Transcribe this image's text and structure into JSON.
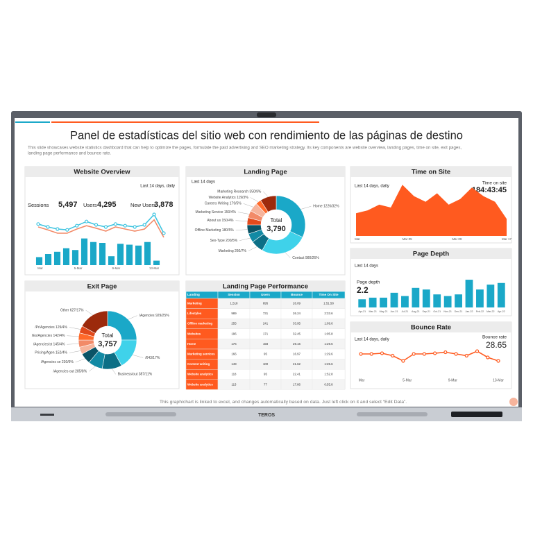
{
  "device_brand": "TEROS",
  "title": "Panel de estadísticas del sitio web con rendimiento de las páginas de destino",
  "description": [
    "This slide showcases website statistics dashboard that can help to optimize the pages, formulate the paid advertising and SEO marketing strategy. Its key components are website overview, landing pages, time on site, exit pages,",
    "landing page performance and bounce rate."
  ],
  "footer": "This graph/chart is linked to excel, and changes automatically based on data. Just left click on it and select “Edit Data”.",
  "website_overview": {
    "title": "Website Overview",
    "period": "Last 14 days, daily",
    "metrics": [
      {
        "label": "Sessions",
        "value": "5,497"
      },
      {
        "label": "Users",
        "value": "4,295"
      },
      {
        "label": "New Users",
        "value": "3,878"
      }
    ],
    "ylim": [
      0,
      100
    ],
    "bars": [
      18,
      25,
      30,
      38,
      34,
      60,
      52,
      50,
      20,
      48,
      46,
      44,
      52,
      10
    ],
    "line_blue": [
      62,
      55,
      50,
      48,
      58,
      68,
      60,
      55,
      62,
      58,
      55,
      60,
      85,
      40
    ],
    "line_orange": [
      55,
      48,
      40,
      40,
      50,
      58,
      52,
      45,
      55,
      50,
      45,
      50,
      72,
      30
    ],
    "x_labels": [
      "Mar",
      "5-Mar",
      "9-Mar",
      "13-Mar"
    ]
  },
  "landing_page": {
    "title": "Landing Page",
    "period": "Last 14 days",
    "total_label": "Total",
    "total": "3,790",
    "segments": [
      {
        "label": "Home 1226/32%",
        "value": 32,
        "color": "#1aa8c8"
      },
      {
        "label": "Contact 980/26%",
        "value": 26,
        "color": "#3fd2ea"
      },
      {
        "label": "Marketing 260/7%",
        "value": 7,
        "color": "#0c6f86"
      },
      {
        "label": "Sex-Type 200/5%",
        "value": 5,
        "color": "#128aa4"
      },
      {
        "label": "Offline Marketing 180/5%",
        "value": 5,
        "color": "#0a5466"
      },
      {
        "label": "About us 150/4%",
        "value": 4,
        "color": "#e24a1c"
      },
      {
        "label": "Marketing Service 150/4%",
        "value": 4,
        "color": "#f28a68"
      },
      {
        "label": "Careers Writing 179/5%",
        "value": 5,
        "color": "#f6b49c"
      },
      {
        "label": "Website Analytics 119/3%",
        "value": 3,
        "color": "#ff6a2a"
      },
      {
        "label": "Marketing Research 350/9%",
        "value": 9,
        "color": "#9c2a0c"
      }
    ]
  },
  "time_on_site": {
    "title": "Time on Site",
    "period": "Last 14 days, daily",
    "metric_label": "Time on site",
    "metric_value": "184:43:45",
    "ylim": [
      0,
      100
    ],
    "values": [
      40,
      45,
      55,
      50,
      90,
      70,
      60,
      75,
      55,
      65,
      85,
      70,
      60,
      30
    ],
    "x_labels": [
      "Mar",
      "Mar 05",
      "Mar 09",
      "Mar 17"
    ]
  },
  "page_depth": {
    "title": "Page Depth",
    "period": "Last 14 days",
    "metric_label": "Page depth",
    "metric_value": "2.2",
    "ylim": [
      0,
      100
    ],
    "values": [
      25,
      30,
      30,
      45,
      35,
      60,
      55,
      40,
      35,
      40,
      85,
      55,
      70,
      75
    ],
    "x_labels": [
      "Apr-21",
      "Mar-21",
      "May-21",
      "Jun-21",
      "Jul-21",
      "Aug-21",
      "Sep-21",
      "Oct-21",
      "Nov-21",
      "Dec-21",
      "Jan-22",
      "Feb-22",
      "Mar-22",
      "Apr-22"
    ]
  },
  "exit_page": {
    "title": "Exit Page",
    "total_label": "Total",
    "total": "3,757",
    "segments": [
      {
        "label": "/Agencies 929/25%",
        "value": 25,
        "color": "#1aa8c8"
      },
      {
        "label": "/643/17%",
        "value": 17,
        "color": "#3fd2ea"
      },
      {
        "label": "Business/out 387/11%",
        "value": 11,
        "color": "#0c6f86"
      },
      {
        "label": "/Agencies out 285/8%",
        "value": 8,
        "color": "#128aa4"
      },
      {
        "label": "/Agencies se 230/6%",
        "value": 6,
        "color": "#0a5466"
      },
      {
        "label": "Pricing/Agen 152/4%",
        "value": 4,
        "color": "#f6b49c"
      },
      {
        "label": "/Agencies/st 145/4%",
        "value": 4,
        "color": "#f28a68"
      },
      {
        "label": "/Es/Agencies 142/4%",
        "value": 4,
        "color": "#ff6a2a"
      },
      {
        "label": "/Pr/Agencies 129/4%",
        "value": 4,
        "color": "#e24a1c"
      },
      {
        "label": "Other 627/17%",
        "value": 17,
        "color": "#9c2a0c"
      }
    ]
  },
  "performance": {
    "title": "Landing Page Performance",
    "columns": [
      "Landing",
      "Session",
      "Users",
      "Bounce",
      "Time On Site"
    ],
    "rows": [
      [
        "Marketing",
        "1,518",
        "895",
        "26.09",
        "1:51.58"
      ],
      [
        "Lifestyles",
        "989",
        "731",
        "26.24",
        "2:33.6"
      ],
      [
        "Offline marketing",
        "255",
        "241",
        "33.95",
        "1:09.6"
      ],
      [
        "Websites",
        "196",
        "171",
        "32.45",
        "1:05.8"
      ],
      [
        "Home",
        "176",
        "158",
        "29.16",
        "1:29.6"
      ],
      [
        "Marketing services",
        "166",
        "95",
        "16.97",
        "1:29.6"
      ],
      [
        "Content writing",
        "149",
        "100",
        "21.62",
        "1:25.6"
      ],
      [
        "Website analytics",
        "118",
        "95",
        "22.41",
        "1:52.8"
      ],
      [
        "Website analytics",
        "113",
        "77",
        "17.86",
        "0:55.8"
      ]
    ]
  },
  "bounce_rate": {
    "title": "Bounce Rate",
    "period": "Last 14 days, daily",
    "metric_label": "Bounce rate",
    "metric_value": "28.65",
    "ylim": [
      0,
      100
    ],
    "values": [
      60,
      60,
      62,
      55,
      40,
      60,
      60,
      62,
      65,
      60,
      55,
      68,
      50,
      40
    ],
    "x_labels": [
      "Mar",
      "5-Mar",
      "9-Mar",
      "13-Mar"
    ]
  }
}
